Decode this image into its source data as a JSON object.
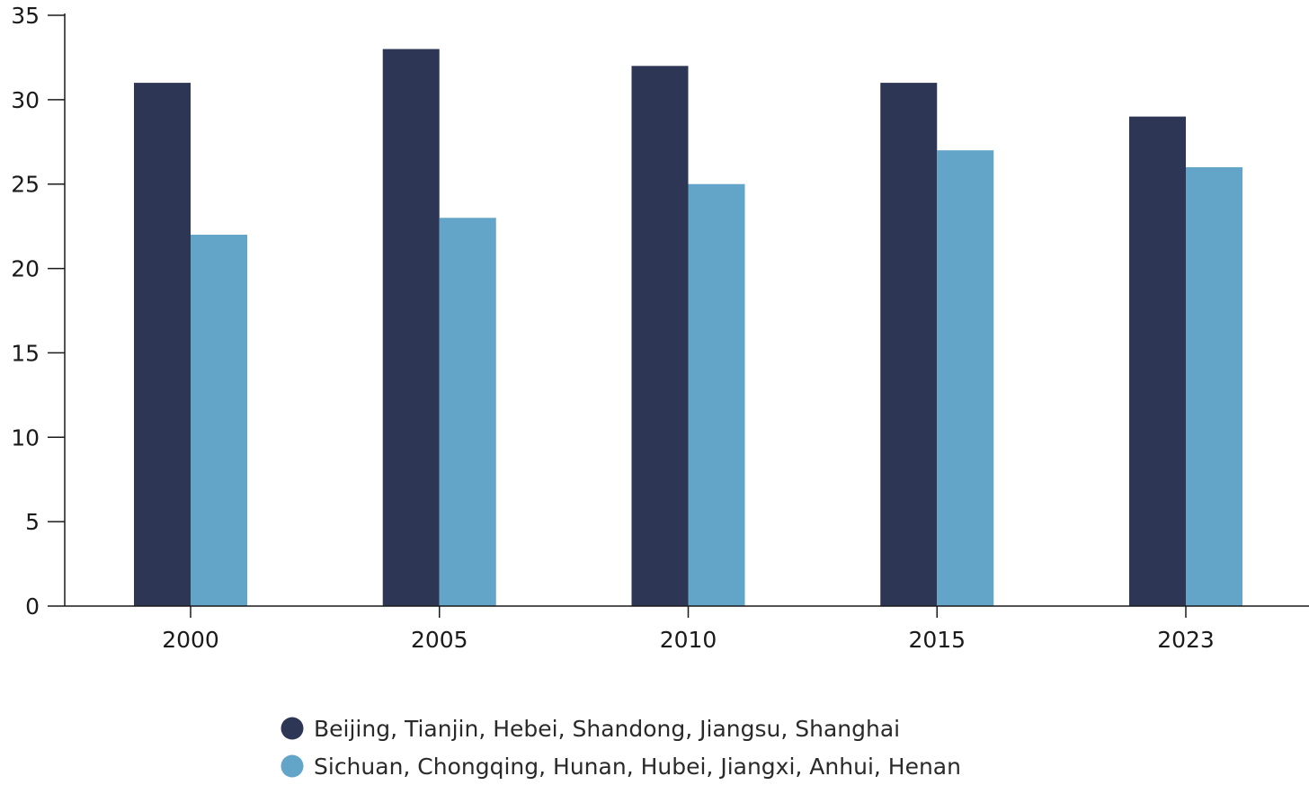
{
  "chart_data": {
    "type": "bar",
    "title": "",
    "xlabel": "",
    "ylabel": "",
    "categories": [
      "2000",
      "2005",
      "2010",
      "2015",
      "2023"
    ],
    "series": [
      {
        "name": "Beijing, Tianjin, Hebei, Shandong, Jiangsu, Shanghai",
        "color": "#2e3655",
        "values": [
          31,
          33,
          32,
          31,
          29
        ]
      },
      {
        "name": "Sichuan, Chongqing, Hunan, Hubei, Jiangxi, Anhui, Henan",
        "color": "#63a5c8",
        "values": [
          22,
          23,
          25,
          27,
          26
        ]
      }
    ],
    "ylim": [
      0,
      35
    ],
    "yticks": [
      0,
      5,
      10,
      15,
      20,
      25,
      30,
      35
    ],
    "grid": false,
    "legend_position": "bottom-center"
  }
}
